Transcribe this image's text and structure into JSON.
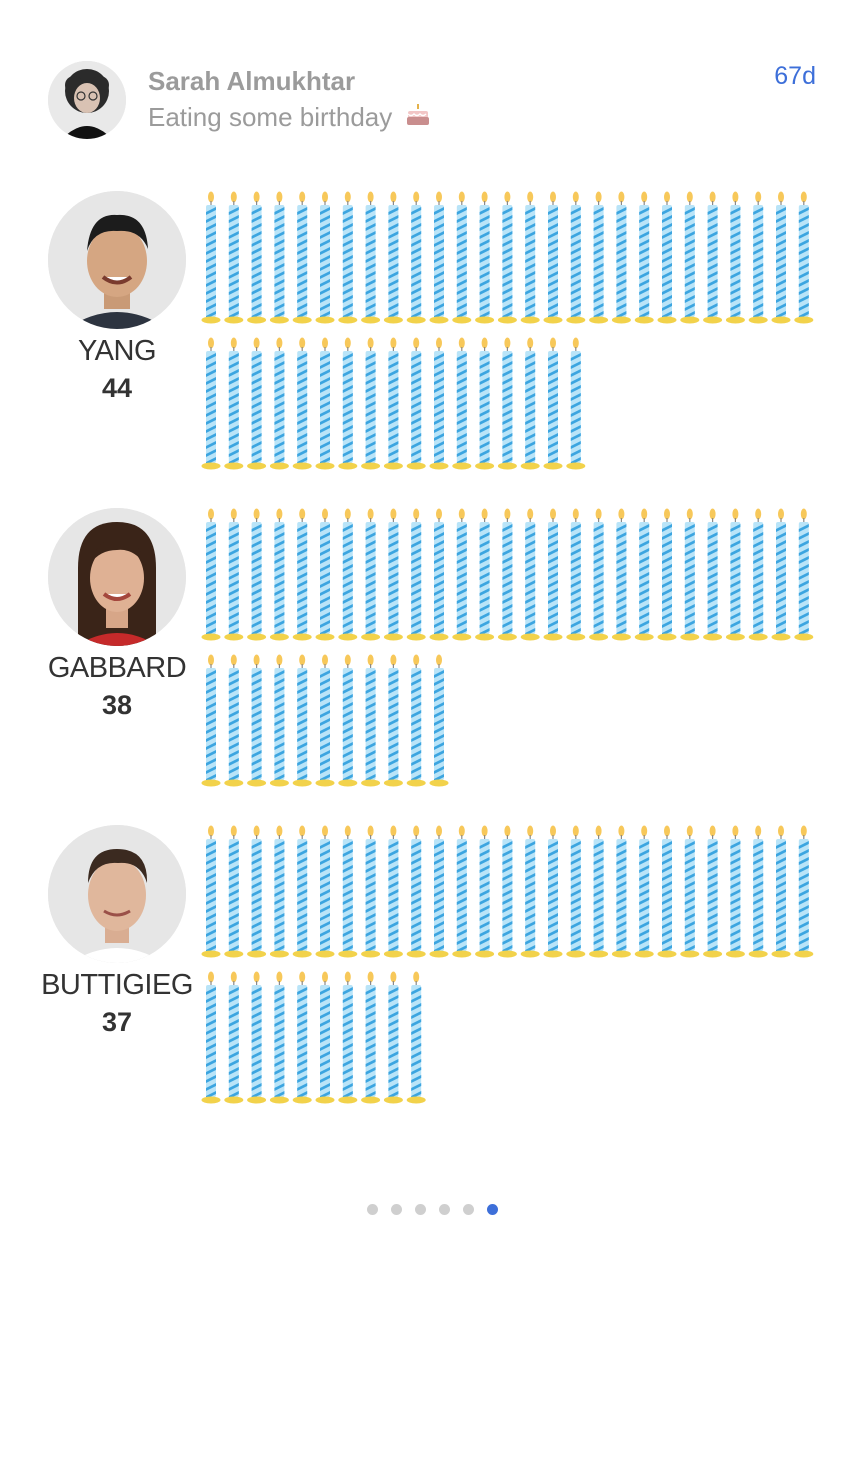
{
  "post": {
    "author_name": "Sarah Almukhtar",
    "status_text": "Eating some birthday",
    "status_icon": "birthday-cake-icon",
    "age": "67d",
    "link_color": "#3d6fd9"
  },
  "candidates": [
    {
      "name": "YANG",
      "age": "44",
      "candles": 44
    },
    {
      "name": "GABBARD",
      "age": "38",
      "candles": 38
    },
    {
      "name": "BUTTIGIEG",
      "age": "37",
      "candles": 37
    }
  ],
  "candle_style": {
    "icon": "candle-icon",
    "stripe_light": "#b9e4f8",
    "stripe_dark": "#3ca5e0",
    "base": "#f2d24b",
    "flame": "#f7c85a"
  },
  "pager": {
    "count": 6,
    "active_index": 5,
    "active_color": "#3d6fd9"
  }
}
